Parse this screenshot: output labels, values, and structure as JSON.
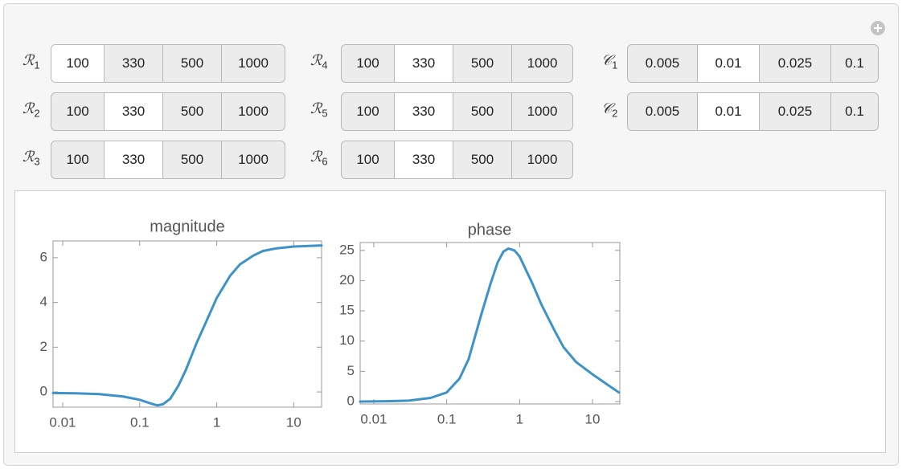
{
  "controls": [
    {
      "symbol": "ℛ",
      "subscript": "1",
      "options": [
        "100",
        "330",
        "500",
        "1000"
      ],
      "selected": 0
    },
    {
      "symbol": "ℛ",
      "subscript": "2",
      "options": [
        "100",
        "330",
        "500",
        "1000"
      ],
      "selected": 1
    },
    {
      "symbol": "ℛ",
      "subscript": "3",
      "options": [
        "100",
        "330",
        "500",
        "1000"
      ],
      "selected": 1
    },
    {
      "symbol": "ℛ",
      "subscript": "4",
      "options": [
        "100",
        "330",
        "500",
        "1000"
      ],
      "selected": 1
    },
    {
      "symbol": "ℛ",
      "subscript": "5",
      "options": [
        "100",
        "330",
        "500",
        "1000"
      ],
      "selected": 1
    },
    {
      "symbol": "ℛ",
      "subscript": "6",
      "options": [
        "100",
        "330",
        "500",
        "1000"
      ],
      "selected": 1
    },
    {
      "symbol": "𝒞",
      "subscript": "1",
      "options": [
        "0.005",
        "0.01",
        "0.025",
        "0.1"
      ],
      "selected": 1
    },
    {
      "symbol": "𝒞",
      "subscript": "2",
      "options": [
        "0.005",
        "0.01",
        "0.025",
        "0.1"
      ],
      "selected": 1
    }
  ],
  "chart_data": [
    {
      "type": "line",
      "title": "magnitude",
      "xscale": "log",
      "color": "#3d93c9",
      "x": [
        0.0075,
        0.015,
        0.03,
        0.06,
        0.1,
        0.14,
        0.17,
        0.2,
        0.25,
        0.32,
        0.4,
        0.55,
        0.7,
        1,
        1.5,
        2,
        3,
        4,
        6,
        10,
        23
      ],
      "values": [
        -0.05,
        -0.06,
        -0.1,
        -0.2,
        -0.35,
        -0.52,
        -0.6,
        -0.55,
        -0.3,
        0.3,
        1.0,
        2.2,
        3.0,
        4.2,
        5.2,
        5.7,
        6.1,
        6.3,
        6.42,
        6.5,
        6.55
      ],
      "xlim": [
        0.0075,
        23
      ],
      "ylim": [
        -0.68,
        6.75
      ],
      "xticks": [
        0.01,
        0.1,
        1,
        10
      ],
      "yticks": [
        0,
        2,
        4,
        6
      ]
    },
    {
      "type": "line",
      "title": "phase",
      "xscale": "log",
      "color": "#3d93c9",
      "x": [
        0.0065,
        0.015,
        0.03,
        0.06,
        0.1,
        0.15,
        0.2,
        0.3,
        0.4,
        0.5,
        0.6,
        0.7,
        0.85,
        1,
        1.5,
        2,
        3,
        4,
        6,
        10,
        23
      ],
      "values": [
        0,
        0.05,
        0.15,
        0.6,
        1.5,
        3.8,
        7,
        14.5,
        19.5,
        23,
        24.8,
        25.3,
        25,
        24,
        19.5,
        16,
        11.8,
        9,
        6.5,
        4.5,
        1.5
      ],
      "xlim": [
        0.0065,
        23.7
      ],
      "ylim": [
        -0.4,
        26.3
      ],
      "xticks": [
        0.01,
        0.1,
        1,
        10
      ],
      "yticks": [
        0,
        5,
        10,
        15,
        20,
        25
      ]
    }
  ]
}
